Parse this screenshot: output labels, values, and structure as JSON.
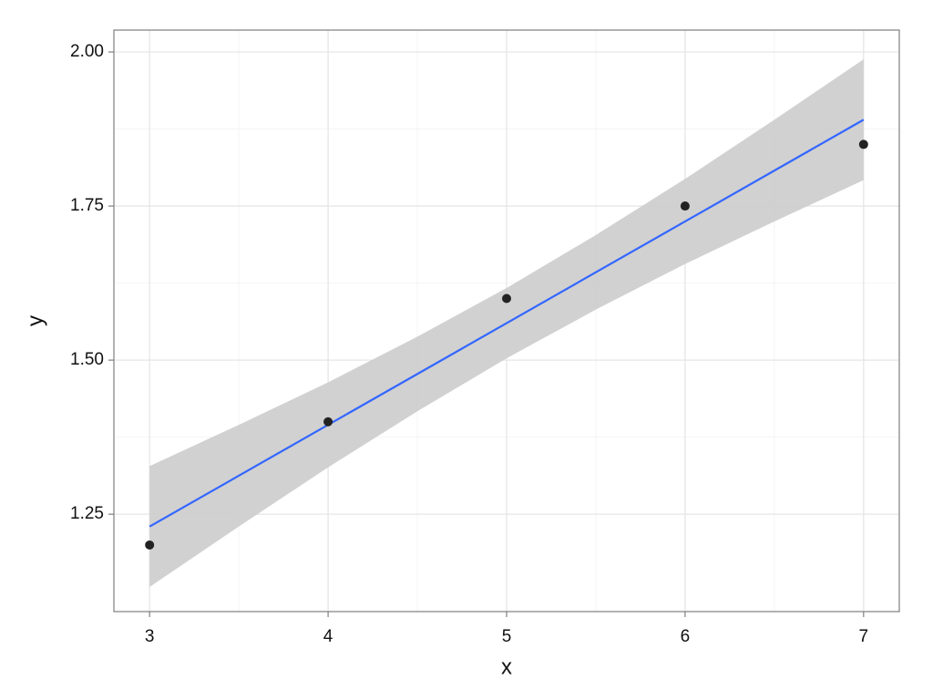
{
  "chart_data": {
    "type": "scatter",
    "x_label": "x",
    "y_label": "y",
    "xlim": [
      2.8,
      7.2
    ],
    "ylim": [
      1.092,
      2.0355
    ],
    "xticks": [
      3,
      4,
      5,
      6,
      7
    ],
    "yticks": [
      1.25,
      {
        "value": 1.5,
        "label": "1.50"
      },
      1.75,
      {
        "value": 2,
        "label": "2.00"
      }
    ],
    "grid": true,
    "points": {
      "color": "#222222",
      "x": [
        3,
        4,
        5,
        6,
        7
      ],
      "values": [
        1.2,
        1.4,
        1.6,
        1.75,
        1.85
      ]
    },
    "fit": {
      "color": "#3366ff",
      "x": [
        3,
        7
      ],
      "values": [
        1.23,
        1.89
      ]
    },
    "band": {
      "color": "#cccccc",
      "x": [
        3,
        3.5,
        4,
        4.5,
        5,
        5.5,
        6,
        6.5,
        7
      ],
      "lower": [
        1.132,
        1.23,
        1.326,
        1.417,
        1.503,
        1.582,
        1.656,
        1.725,
        1.792
      ],
      "upper": [
        1.328,
        1.395,
        1.464,
        1.538,
        1.617,
        1.703,
        1.794,
        1.89,
        1.988
      ]
    }
  }
}
